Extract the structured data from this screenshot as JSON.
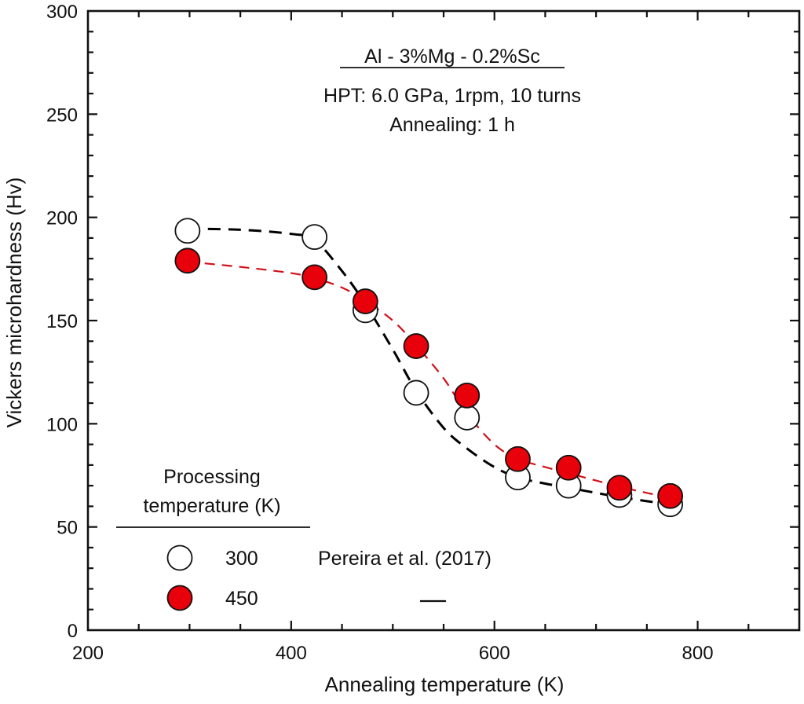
{
  "chart_data": {
    "type": "scatter",
    "title": "Al - 3%Mg - 0.2%Sc",
    "annotations": [
      "HPT: 6.0 GPa, 1rpm, 10 turns",
      "Annealing: 1 h"
    ],
    "xlabel": "Annealing temperature (K)",
    "ylabel": "Vickers microhardness (Hv)",
    "xlim": [
      200,
      900
    ],
    "ylim": [
      0,
      300
    ],
    "x_ticks": [
      200,
      400,
      600,
      800
    ],
    "x_tick_labels": [
      "200",
      "400",
      "600",
      "800"
    ],
    "x_minor_step": 50,
    "y_ticks": [
      0,
      50,
      100,
      150,
      200,
      250,
      300
    ],
    "y_tick_labels": [
      "0",
      "50",
      "100",
      "150",
      "200",
      "250",
      "300"
    ],
    "y_minor_step": 10,
    "grid": false,
    "legend": {
      "title_line1": "Processing",
      "title_line2": "temperature (K)",
      "source_label": "Pereira et al. (2017)",
      "placement": "bottom-left",
      "entries": [
        {
          "label": "300",
          "marker": "open-circle"
        },
        {
          "label": "450",
          "marker": "filled-circle"
        }
      ]
    },
    "series": [
      {
        "name": "300",
        "marker": "open-circle",
        "marker_fill": "#ffffff",
        "line_color": "#000000",
        "line_style": "dashed",
        "x": [
          298,
          423,
          473,
          523,
          573,
          623,
          673,
          723,
          773
        ],
        "y": [
          193.5,
          190.5,
          155,
          115,
          103,
          74,
          70,
          65.5,
          61
        ],
        "fit_curve": {
          "x": [
            298,
            350,
            400,
            423,
            450,
            473,
            500,
            523,
            550,
            573,
            600,
            623,
            650,
            673,
            700,
            723,
            750,
            773
          ],
          "y": [
            194.5,
            194,
            192,
            189,
            174,
            158,
            136,
            116,
            98,
            88,
            79,
            74,
            71,
            69,
            66.5,
            64.5,
            62.5,
            61
          ]
        }
      },
      {
        "name": "450",
        "marker": "filled-circle",
        "marker_fill": "#e8000b",
        "line_color": "#d0101a",
        "line_style": "dashed",
        "x": [
          298,
          423,
          473,
          523,
          573,
          623,
          673,
          723,
          773
        ],
        "y": [
          179,
          171,
          159.3,
          137.6,
          113.7,
          82.9,
          78.7,
          69,
          65
        ],
        "fit_curve": {
          "x": [
            298,
            350,
            400,
            423,
            450,
            473,
            500,
            523,
            550,
            573,
            600,
            623,
            650,
            673,
            700,
            723,
            750,
            773
          ],
          "y": [
            178.5,
            176,
            173,
            170.5,
            166,
            159.5,
            150,
            138,
            122,
            105,
            90,
            83,
            79,
            76,
            72.5,
            69.5,
            66.5,
            64
          ]
        }
      }
    ]
  }
}
